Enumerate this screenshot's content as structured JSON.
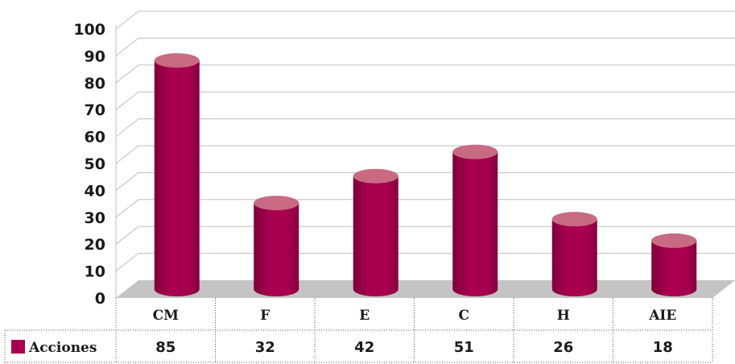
{
  "chart_data": {
    "type": "bar",
    "categories": [
      "CM",
      "F",
      "E",
      "C",
      "H",
      "AIE"
    ],
    "series": [
      {
        "name": "Acciones",
        "values": [
          85,
          32,
          42,
          51,
          26,
          18
        ]
      }
    ],
    "ylim": [
      0,
      100
    ],
    "yticks": [
      0,
      10,
      20,
      30,
      40,
      50,
      60,
      70,
      80,
      90,
      100
    ],
    "grid": true,
    "data_table": true,
    "colors": {
      "bar": "#a8004e",
      "bar_top": "#c86a82",
      "floor": "#c4c4c4",
      "grid": "#bfbfbf"
    }
  }
}
